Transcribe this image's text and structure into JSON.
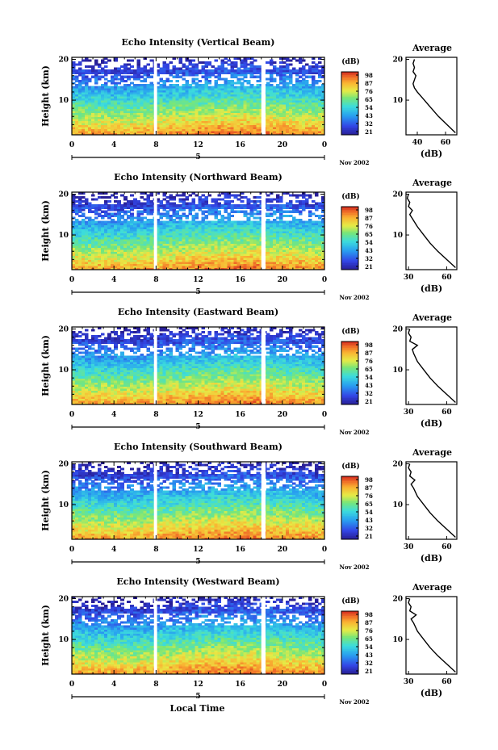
{
  "figure_xlabel": "Local Time",
  "colors": {
    "ink": "#000000",
    "gap": "#ffffff"
  },
  "colormap_name": "jet",
  "chart_data": [
    {
      "type": "heatmap",
      "title": "Echo Intensity (Vertical Beam)",
      "ylabel": "Height (km)",
      "y_ticks": [
        "20",
        "10"
      ],
      "x_ticks": [
        "0",
        "4",
        "8",
        "12",
        "16",
        "20",
        "0"
      ],
      "day_marker": "5",
      "date_label": "Nov 2002",
      "xlim": [
        0,
        24
      ],
      "ylim": [
        1.5,
        20.5
      ],
      "gaps_hours": [
        [
          7.8,
          8.1
        ],
        [
          18.0,
          18.4
        ]
      ],
      "colorbar": {
        "unit": "(dB)",
        "ticks": [
          "98",
          "87",
          "76",
          "65",
          "54",
          "43",
          "32",
          "21"
        ],
        "range": [
          21,
          98
        ]
      },
      "profile": {
        "title": "Average",
        "xlabel": "(dB)",
        "x_ticks": [
          "40",
          "60"
        ],
        "xlim": [
          32,
          68
        ],
        "y_ticks": [
          "20",
          "10"
        ],
        "height_km": [
          2,
          4,
          6,
          8,
          10,
          12,
          13,
          14,
          15,
          16,
          17,
          18,
          19,
          20
        ],
        "db": [
          67,
          61,
          55,
          50,
          45,
          40,
          38,
          37,
          38,
          39,
          37,
          38,
          37,
          38
        ]
      }
    },
    {
      "type": "heatmap",
      "title": "Echo Intensity (Northward Beam)",
      "ylabel": "Height (km)",
      "y_ticks": [
        "20",
        "10"
      ],
      "x_ticks": [
        "0",
        "4",
        "8",
        "12",
        "16",
        "20",
        "0"
      ],
      "day_marker": "5",
      "date_label": "Nov 2002",
      "xlim": [
        0,
        24
      ],
      "ylim": [
        1.5,
        20.5
      ],
      "gaps_hours": [
        [
          7.8,
          8.1
        ],
        [
          18.0,
          18.4
        ]
      ],
      "colorbar": {
        "unit": "(dB)",
        "ticks": [
          "98",
          "87",
          "76",
          "65",
          "54",
          "43",
          "32",
          "21"
        ],
        "range": [
          21,
          98
        ]
      },
      "profile": {
        "title": "Average",
        "xlabel": "(dB)",
        "x_ticks": [
          "30",
          "60"
        ],
        "xlim": [
          28,
          68
        ],
        "y_ticks": [
          "20",
          "10"
        ],
        "height_km": [
          2,
          4,
          6,
          8,
          10,
          12,
          14,
          15,
          16,
          17,
          18,
          19,
          20
        ],
        "db": [
          67,
          60,
          53,
          47,
          42,
          37,
          33,
          31,
          33,
          30,
          31,
          29,
          30
        ]
      }
    },
    {
      "type": "heatmap",
      "title": "Echo Intensity (Eastward Beam)",
      "ylabel": "Height (km)",
      "y_ticks": [
        "20",
        "10"
      ],
      "x_ticks": [
        "0",
        "4",
        "8",
        "12",
        "16",
        "20",
        "0"
      ],
      "day_marker": "5",
      "date_label": "Nov 2002",
      "xlim": [
        0,
        24
      ],
      "ylim": [
        1.5,
        20.5
      ],
      "gaps_hours": [
        [
          7.8,
          8.1
        ],
        [
          18.0,
          18.4
        ]
      ],
      "colorbar": {
        "unit": "(dB)",
        "ticks": [
          "98",
          "87",
          "76",
          "65",
          "54",
          "43",
          "32",
          "21"
        ],
        "range": [
          21,
          98
        ]
      },
      "profile": {
        "title": "Average",
        "xlabel": "(dB)",
        "x_ticks": [
          "30",
          "60"
        ],
        "xlim": [
          28,
          68
        ],
        "y_ticks": [
          "20",
          "10"
        ],
        "height_km": [
          2,
          4,
          6,
          8,
          10,
          12,
          14,
          15,
          16,
          17,
          18,
          19,
          20
        ],
        "db": [
          67,
          60,
          53,
          47,
          42,
          37,
          34,
          33,
          37,
          31,
          32,
          30,
          31
        ]
      }
    },
    {
      "type": "heatmap",
      "title": "Echo Intensity (Southward Beam)",
      "ylabel": "Height (km)",
      "y_ticks": [
        "20",
        "10"
      ],
      "x_ticks": [
        "0",
        "4",
        "8",
        "12",
        "16",
        "20",
        "0"
      ],
      "day_marker": "5",
      "date_label": "Nov 2002",
      "xlim": [
        0,
        24
      ],
      "ylim": [
        1.5,
        20.5
      ],
      "gaps_hours": [
        [
          7.8,
          8.1
        ],
        [
          18.0,
          18.4
        ]
      ],
      "colorbar": {
        "unit": "(dB)",
        "ticks": [
          "98",
          "87",
          "76",
          "65",
          "54",
          "43",
          "32",
          "21"
        ],
        "range": [
          21,
          98
        ]
      },
      "profile": {
        "title": "Average",
        "xlabel": "(dB)",
        "x_ticks": [
          "30",
          "60"
        ],
        "xlim": [
          28,
          68
        ],
        "y_ticks": [
          "20",
          "10"
        ],
        "height_km": [
          2,
          4,
          6,
          8,
          10,
          12,
          14,
          15,
          16,
          17,
          18,
          19,
          20
        ],
        "db": [
          67,
          60,
          53,
          47,
          42,
          37,
          34,
          32,
          35,
          31,
          32,
          30,
          31
        ]
      }
    },
    {
      "type": "heatmap",
      "title": "Echo Intensity (Westward Beam)",
      "ylabel": "Height (km)",
      "y_ticks": [
        "20",
        "10"
      ],
      "x_ticks": [
        "0",
        "4",
        "8",
        "12",
        "16",
        "20",
        "0"
      ],
      "day_marker": "5",
      "date_label": "Nov 2002",
      "xlim": [
        0,
        24
      ],
      "ylim": [
        1.5,
        20.5
      ],
      "gaps_hours": [
        [
          7.8,
          8.1
        ],
        [
          18.0,
          18.4
        ]
      ],
      "colorbar": {
        "unit": "(dB)",
        "ticks": [
          "98",
          "87",
          "76",
          "65",
          "54",
          "43",
          "32",
          "21"
        ],
        "range": [
          21,
          98
        ]
      },
      "profile": {
        "title": "Average",
        "xlabel": "(dB)",
        "x_ticks": [
          "30",
          "60"
        ],
        "xlim": [
          28,
          68
        ],
        "y_ticks": [
          "20",
          "10"
        ],
        "height_km": [
          2,
          4,
          6,
          8,
          10,
          12,
          14,
          15,
          16,
          17,
          18,
          19,
          20
        ],
        "db": [
          67,
          60,
          53,
          47,
          42,
          37,
          34,
          32,
          36,
          31,
          32,
          30,
          31
        ]
      }
    }
  ]
}
